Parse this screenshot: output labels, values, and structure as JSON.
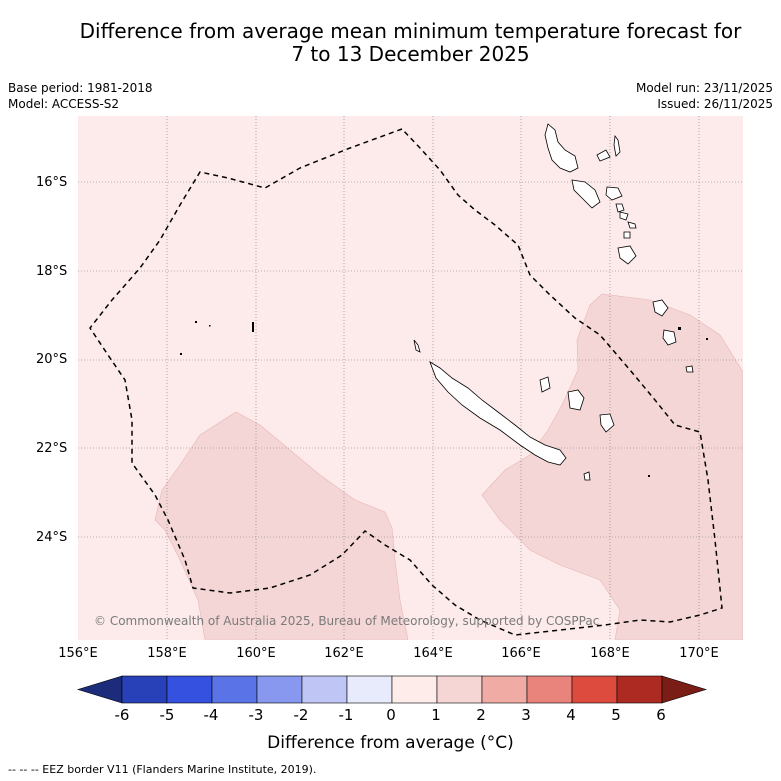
{
  "title_line1": "Difference from average mean minimum temperature forecast for",
  "title_line2": "7 to 13 December 2025",
  "base_period": "Base period: 1981-2018",
  "model": "Model: ACCESS-S2",
  "model_run": "Model run: 23/11/2025",
  "issued": "Issued: 26/11/2025",
  "lat_labels": [
    "16°S",
    "18°S",
    "20°S",
    "22°S",
    "24°S"
  ],
  "lon_labels": [
    "156°E",
    "158°E",
    "160°E",
    "162°E",
    "164°E",
    "166°E",
    "168°E",
    "170°E"
  ],
  "copyright": "© Commonwealth of Australia 2025, Bureau of Meteorology, supported by COSPPac",
  "colorbar": {
    "ticks": [
      "-6",
      "-5",
      "-4",
      "-3",
      "-2",
      "-1",
      "0",
      "1",
      "2",
      "3",
      "4",
      "5",
      "6"
    ],
    "colors": [
      "#1c2c7a",
      "#2841b8",
      "#3551e0",
      "#5a74e8",
      "#8798ee",
      "#bfc6f5",
      "#e8ebfb",
      "#fdecea",
      "#f6d5d5",
      "#f0aba5",
      "#e8847b",
      "#dc4b3e",
      "#ad2a22",
      "#7a1d16"
    ],
    "title": "Difference from average (°C)"
  },
  "legend_footer": "-- -- -- EEZ border V11 (Flanders Marine Institute, 2019).",
  "map_colors": {
    "background": "#fcebea",
    "anomaly_1_2": "#f5d6d6",
    "coast": "#000000"
  }
}
